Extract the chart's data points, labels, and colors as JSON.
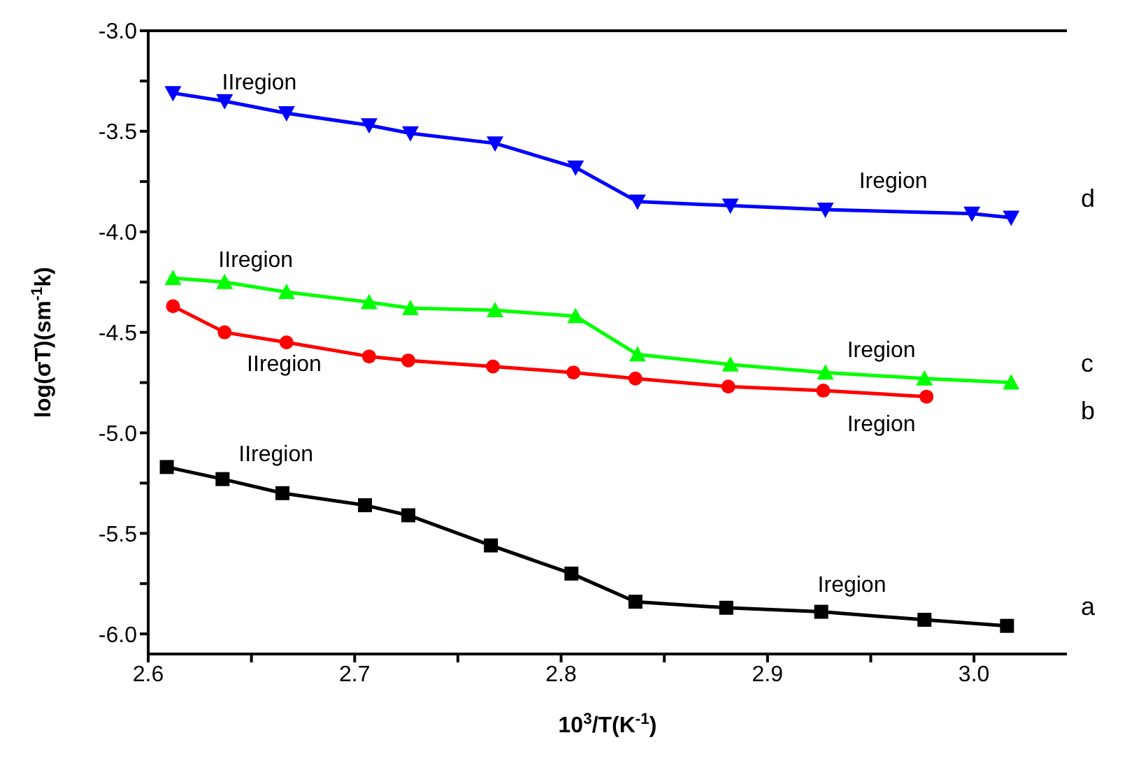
{
  "chart_data": {
    "type": "line",
    "xlabel": "10$^{3}$/T(K$^{-1}$)",
    "ylabel": "log(σT)(sm$^{-1}$k)",
    "xlim": [
      2.6,
      3.045
    ],
    "ylim": [
      -6.1,
      -3.0
    ],
    "xticks": [
      2.6,
      {
        "value": 2.65,
        "label": null
      },
      2.7,
      {
        "value": 2.75,
        "label": null
      },
      2.8,
      {
        "value": 2.85,
        "label": null
      },
      2.9,
      {
        "value": 2.95,
        "label": null
      },
      {
        "value": 3.0,
        "label": "3.0"
      }
    ],
    "yticks": [
      {
        "value": -6.0,
        "label": "-6.0"
      },
      {
        "value": -5.75,
        "label": null
      },
      {
        "value": -5.5,
        "label": "-5.5"
      },
      {
        "value": -5.25,
        "label": null
      },
      {
        "value": -5.0,
        "label": "-5.0"
      },
      {
        "value": -4.75,
        "label": null
      },
      {
        "value": -4.5,
        "label": "-4.5"
      },
      {
        "value": -4.25,
        "label": null
      },
      {
        "value": -4.0,
        "label": "-4.0"
      },
      {
        "value": -3.75,
        "label": null
      },
      {
        "value": -3.5,
        "label": "-3.5"
      },
      {
        "value": -3.25,
        "label": null
      },
      {
        "value": -3.0,
        "label": "-3.0"
      }
    ],
    "grid": false,
    "line_style": "solid",
    "series": [
      {
        "name": "a",
        "color": "#000000",
        "marker": "square",
        "x": [
          2.609,
          2.636,
          2.665,
          2.705,
          2.726,
          2.766,
          2.805,
          2.836,
          2.88,
          2.926,
          2.976,
          3.016
        ],
        "values": [
          -5.17,
          -5.23,
          -5.3,
          -5.36,
          -5.41,
          -5.56,
          -5.7,
          -5.84,
          -5.87,
          -5.89,
          -5.93,
          -5.96
        ]
      },
      {
        "name": "b",
        "color": "#ff0000",
        "marker": "circle",
        "x": [
          2.612,
          2.637,
          2.667,
          2.707,
          2.726,
          2.767,
          2.806,
          2.836,
          2.881,
          2.927,
          2.977
        ],
        "values": [
          -4.37,
          -4.5,
          -4.55,
          -4.62,
          -4.64,
          -4.67,
          -4.7,
          -4.73,
          -4.77,
          -4.79,
          -4.82
        ]
      },
      {
        "name": "c",
        "color": "#00ff00",
        "marker": "triangle",
        "x": [
          2.612,
          2.637,
          2.667,
          2.707,
          2.727,
          2.768,
          2.807,
          2.837,
          2.882,
          2.928,
          2.976,
          3.018
        ],
        "values": [
          -4.23,
          -4.25,
          -4.3,
          -4.35,
          -4.38,
          -4.39,
          -4.42,
          -4.61,
          -4.66,
          -4.7,
          -4.73,
          -4.75
        ]
      },
      {
        "name": "d",
        "color": "#0000ff",
        "marker": "triangle-down",
        "x": [
          2.612,
          2.637,
          2.667,
          2.707,
          2.727,
          2.768,
          2.807,
          2.837,
          2.882,
          2.928,
          2.999,
          3.018
        ],
        "values": [
          -3.31,
          -3.35,
          -3.41,
          -3.47,
          -3.51,
          -3.56,
          -3.68,
          -3.85,
          -3.87,
          -3.89,
          -3.91,
          -3.93
        ]
      }
    ],
    "annotations": [
      "IIregion",
      "Iregion",
      "IIregion",
      "Iregion",
      "IIregion",
      "Iregion",
      "IIregion",
      "Iregion"
    ]
  }
}
